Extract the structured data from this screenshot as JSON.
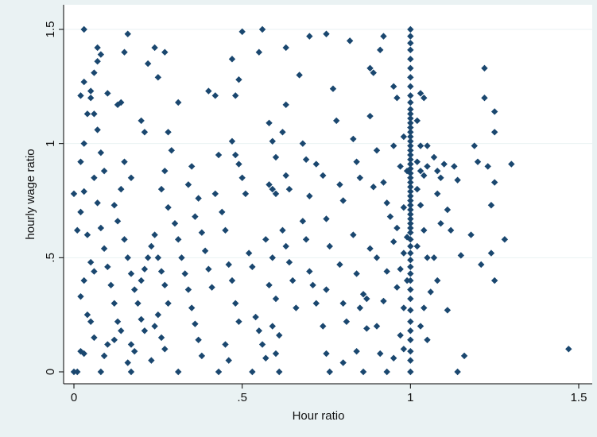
{
  "chart_data": {
    "type": "scatter",
    "xlabel": "Hour ratio",
    "ylabel": "hourly wage ratio",
    "xlim": [
      0,
      1.5
    ],
    "ylim": [
      0,
      1.5
    ],
    "x_ticks": [
      {
        "value": 0,
        "label": "0"
      },
      {
        "value": 0.5,
        "label": ".5"
      },
      {
        "value": 1,
        "label": "1"
      },
      {
        "value": 1.5,
        "label": "1.5"
      }
    ],
    "y_ticks": [
      {
        "value": 0,
        "label": "0"
      },
      {
        "value": 0.5,
        "label": ".5"
      },
      {
        "value": 1,
        "label": "1"
      },
      {
        "value": 1.5,
        "label": "1.5"
      }
    ],
    "grid": "horizontal",
    "legend": "none",
    "marker": "diamond",
    "colors": {
      "marker": "#1a476f",
      "plot_background": "#ffffff",
      "outer_background": "#eaf2f3",
      "grid": "#eaf2f3"
    },
    "points": [
      [
        0.0,
        0.0
      ],
      [
        0.01,
        0.0
      ],
      [
        0.02,
        0.09
      ],
      [
        0.03,
        0.08
      ],
      [
        0.02,
        0.33
      ],
      [
        0.03,
        0.4
      ],
      [
        0.04,
        0.25
      ],
      [
        0.05,
        0.22
      ],
      [
        0.06,
        0.15
      ],
      [
        0.01,
        0.62
      ],
      [
        0.02,
        0.7
      ],
      [
        0.03,
        0.79
      ],
      [
        0.0,
        0.78
      ],
      [
        0.04,
        0.6
      ],
      [
        0.05,
        0.48
      ],
      [
        0.06,
        0.44
      ],
      [
        0.02,
        0.92
      ],
      [
        0.03,
        1.0
      ],
      [
        0.04,
        1.13
      ],
      [
        0.02,
        1.21
      ],
      [
        0.03,
        1.27
      ],
      [
        0.05,
        1.2
      ],
      [
        0.06,
        1.13
      ],
      [
        0.07,
        1.06
      ],
      [
        0.08,
        0.96
      ],
      [
        0.09,
        0.88
      ],
      [
        0.06,
        0.85
      ],
      [
        0.07,
        0.74
      ],
      [
        0.08,
        0.63
      ],
      [
        0.09,
        0.54
      ],
      [
        0.1,
        0.46
      ],
      [
        0.11,
        0.38
      ],
      [
        0.12,
        0.3
      ],
      [
        0.13,
        0.22
      ],
      [
        0.14,
        0.18
      ],
      [
        0.1,
        0.12
      ],
      [
        0.12,
        0.14
      ],
      [
        0.09,
        0.07
      ],
      [
        0.08,
        0.0
      ],
      [
        0.03,
        1.5
      ],
      [
        0.07,
        1.42
      ],
      [
        0.08,
        1.39
      ],
      [
        0.07,
        1.36
      ],
      [
        0.06,
        1.31
      ],
      [
        0.05,
        1.23
      ],
      [
        0.1,
        1.22
      ],
      [
        0.13,
        1.17
      ],
      [
        0.14,
        1.18
      ],
      [
        0.15,
        1.4
      ],
      [
        0.16,
        1.48
      ],
      [
        0.15,
        0.92
      ],
      [
        0.17,
        0.85
      ],
      [
        0.14,
        0.8
      ],
      [
        0.12,
        0.73
      ],
      [
        0.13,
        0.66
      ],
      [
        0.15,
        0.58
      ],
      [
        0.16,
        0.5
      ],
      [
        0.17,
        0.43
      ],
      [
        0.18,
        0.36
      ],
      [
        0.19,
        0.3
      ],
      [
        0.2,
        0.23
      ],
      [
        0.21,
        0.18
      ],
      [
        0.17,
        0.12
      ],
      [
        0.18,
        0.09
      ],
      [
        0.16,
        0.04
      ],
      [
        0.17,
        0.0
      ],
      [
        0.2,
        0.4
      ],
      [
        0.21,
        0.45
      ],
      [
        0.22,
        0.5
      ],
      [
        0.23,
        0.55
      ],
      [
        0.24,
        0.6
      ],
      [
        0.25,
        0.5
      ],
      [
        0.26,
        0.44
      ],
      [
        0.27,
        0.38
      ],
      [
        0.28,
        0.3
      ],
      [
        0.25,
        0.25
      ],
      [
        0.24,
        0.2
      ],
      [
        0.26,
        0.15
      ],
      [
        0.27,
        0.1
      ],
      [
        0.23,
        0.05
      ],
      [
        0.2,
        1.1
      ],
      [
        0.21,
        1.05
      ],
      [
        0.22,
        1.35
      ],
      [
        0.24,
        1.42
      ],
      [
        0.27,
        1.4
      ],
      [
        0.25,
        1.29
      ],
      [
        0.28,
        1.05
      ],
      [
        0.29,
        0.97
      ],
      [
        0.27,
        0.88
      ],
      [
        0.26,
        0.8
      ],
      [
        0.28,
        0.72
      ],
      [
        0.3,
        0.65
      ],
      [
        0.31,
        0.58
      ],
      [
        0.32,
        0.5
      ],
      [
        0.33,
        0.43
      ],
      [
        0.34,
        0.36
      ],
      [
        0.35,
        0.28
      ],
      [
        0.36,
        0.21
      ],
      [
        0.37,
        0.14
      ],
      [
        0.38,
        0.07
      ],
      [
        0.31,
        0.0
      ],
      [
        0.31,
        1.18
      ],
      [
        0.35,
        0.9
      ],
      [
        0.34,
        0.82
      ],
      [
        0.37,
        0.76
      ],
      [
        0.36,
        0.68
      ],
      [
        0.38,
        0.61
      ],
      [
        0.39,
        0.53
      ],
      [
        0.4,
        0.45
      ],
      [
        0.41,
        0.37
      ],
      [
        0.42,
        1.21
      ],
      [
        0.4,
        1.23
      ],
      [
        0.43,
        0.95
      ],
      [
        0.42,
        0.78
      ],
      [
        0.44,
        0.7
      ],
      [
        0.45,
        0.62
      ],
      [
        0.46,
        0.47
      ],
      [
        0.47,
        0.4
      ],
      [
        0.48,
        0.3
      ],
      [
        0.49,
        0.22
      ],
      [
        0.45,
        0.12
      ],
      [
        0.46,
        0.05
      ],
      [
        0.43,
        0.0
      ],
      [
        0.47,
        1.37
      ],
      [
        0.48,
        1.21
      ],
      [
        0.49,
        1.28
      ],
      [
        0.5,
        1.49
      ],
      [
        0.47,
        1.01
      ],
      [
        0.48,
        0.95
      ],
      [
        0.49,
        0.91
      ],
      [
        0.5,
        0.85
      ],
      [
        0.51,
        0.78
      ],
      [
        0.52,
        0.52
      ],
      [
        0.53,
        0.46
      ],
      [
        0.54,
        0.24
      ],
      [
        0.55,
        0.18
      ],
      [
        0.56,
        0.12
      ],
      [
        0.57,
        0.06
      ],
      [
        0.53,
        0.0
      ],
      [
        0.55,
        1.4
      ],
      [
        0.56,
        1.5
      ],
      [
        0.58,
        1.09
      ],
      [
        0.59,
        1.01
      ],
      [
        0.6,
        0.94
      ],
      [
        0.58,
        0.82
      ],
      [
        0.59,
        0.8
      ],
      [
        0.6,
        0.78
      ],
      [
        0.57,
        0.58
      ],
      [
        0.59,
        0.5
      ],
      [
        0.58,
        0.38
      ],
      [
        0.6,
        0.32
      ],
      [
        0.59,
        0.2
      ],
      [
        0.61,
        0.16
      ],
      [
        0.6,
        0.08
      ],
      [
        0.61,
        0.0
      ],
      [
        0.63,
        1.17
      ],
      [
        0.62,
        1.05
      ],
      [
        0.63,
        0.86
      ],
      [
        0.64,
        0.8
      ],
      [
        0.62,
        0.62
      ],
      [
        0.63,
        0.55
      ],
      [
        0.64,
        0.48
      ],
      [
        0.65,
        0.4
      ],
      [
        0.66,
        0.28
      ],
      [
        0.63,
        1.42
      ],
      [
        0.67,
        1.3
      ],
      [
        0.68,
        1.0
      ],
      [
        0.69,
        0.93
      ],
      [
        0.7,
        0.77
      ],
      [
        0.68,
        0.66
      ],
      [
        0.69,
        0.58
      ],
      [
        0.7,
        0.44
      ],
      [
        0.71,
        0.38
      ],
      [
        0.72,
        0.3
      ],
      [
        0.7,
        1.47
      ],
      [
        0.72,
        0.91
      ],
      [
        0.74,
        0.86
      ],
      [
        0.75,
        0.67
      ],
      [
        0.76,
        0.55
      ],
      [
        0.75,
        0.36
      ],
      [
        0.74,
        0.2
      ],
      [
        0.75,
        0.08
      ],
      [
        0.76,
        0.0
      ],
      [
        0.75,
        1.48
      ],
      [
        0.77,
        1.24
      ],
      [
        0.78,
        1.1
      ],
      [
        0.79,
        0.82
      ],
      [
        0.8,
        0.75
      ],
      [
        0.79,
        0.47
      ],
      [
        0.8,
        0.3
      ],
      [
        0.81,
        0.22
      ],
      [
        0.8,
        0.04
      ],
      [
        0.82,
        1.45
      ],
      [
        0.83,
        1.02
      ],
      [
        0.84,
        0.92
      ],
      [
        0.85,
        0.85
      ],
      [
        0.83,
        0.6
      ],
      [
        0.84,
        0.43
      ],
      [
        0.86,
        0.34
      ],
      [
        0.85,
        0.28
      ],
      [
        0.87,
        0.19
      ],
      [
        0.84,
        0.09
      ],
      [
        0.86,
        0.0
      ],
      [
        0.88,
        1.33
      ],
      [
        0.89,
        1.31
      ],
      [
        0.88,
        1.12
      ],
      [
        0.9,
        0.97
      ],
      [
        0.89,
        0.81
      ],
      [
        0.88,
        0.54
      ],
      [
        0.9,
        0.5
      ],
      [
        0.87,
        0.32
      ],
      [
        0.9,
        0.2
      ],
      [
        0.91,
        0.08
      ],
      [
        0.92,
        1.47
      ],
      [
        0.91,
        1.41
      ],
      [
        0.92,
        0.83
      ],
      [
        0.93,
        0.74
      ],
      [
        0.94,
        0.68
      ],
      [
        0.93,
        0.44
      ],
      [
        0.92,
        0.31
      ],
      [
        0.93,
        0.0
      ],
      [
        0.95,
        1.25
      ],
      [
        0.96,
        1.2
      ],
      [
        0.95,
        0.99
      ],
      [
        0.97,
        0.9
      ],
      [
        0.96,
        0.63
      ],
      [
        0.95,
        0.57
      ],
      [
        0.97,
        0.45
      ],
      [
        0.96,
        0.37
      ],
      [
        0.98,
        0.28
      ],
      [
        0.97,
        0.16
      ],
      [
        0.95,
        0.06
      ],
      [
        0.98,
        1.03
      ],
      [
        0.99,
        0.88
      ],
      [
        0.98,
        0.72
      ],
      [
        0.99,
        0.59
      ],
      [
        0.98,
        0.52
      ],
      [
        0.99,
        0.4
      ],
      [
        0.98,
        0.1
      ],
      [
        1.0,
        0.0
      ],
      [
        1.0,
        0.05
      ],
      [
        1.0,
        0.09
      ],
      [
        1.0,
        0.14
      ],
      [
        1.0,
        0.18
      ],
      [
        1.0,
        0.22
      ],
      [
        1.0,
        0.27
      ],
      [
        1.0,
        0.32
      ],
      [
        1.0,
        0.36
      ],
      [
        1.0,
        0.4
      ],
      [
        1.0,
        0.43
      ],
      [
        1.0,
        0.46
      ],
      [
        1.0,
        0.49
      ],
      [
        1.0,
        0.52
      ],
      [
        1.0,
        0.55
      ],
      [
        1.0,
        0.58
      ],
      [
        1.0,
        0.61
      ],
      [
        1.0,
        0.63
      ],
      [
        1.0,
        0.65
      ],
      [
        1.0,
        0.67
      ],
      [
        1.0,
        0.69
      ],
      [
        1.0,
        0.71
      ],
      [
        1.0,
        0.73
      ],
      [
        1.0,
        0.75
      ],
      [
        1.0,
        0.77
      ],
      [
        1.0,
        0.79
      ],
      [
        1.0,
        0.81
      ],
      [
        1.0,
        0.83
      ],
      [
        1.0,
        0.85
      ],
      [
        1.0,
        0.87
      ],
      [
        1.0,
        0.89
      ],
      [
        1.0,
        0.91
      ],
      [
        1.0,
        0.93
      ],
      [
        1.0,
        0.95
      ],
      [
        1.0,
        0.97
      ],
      [
        1.0,
        0.99
      ],
      [
        1.0,
        1.01
      ],
      [
        1.0,
        1.03
      ],
      [
        1.0,
        1.05
      ],
      [
        1.0,
        1.07
      ],
      [
        1.0,
        1.09
      ],
      [
        1.0,
        1.11
      ],
      [
        1.0,
        1.13
      ],
      [
        1.0,
        1.15
      ],
      [
        1.0,
        1.18
      ],
      [
        1.0,
        1.21
      ],
      [
        1.0,
        1.25
      ],
      [
        1.0,
        1.29
      ],
      [
        1.0,
        1.33
      ],
      [
        1.0,
        1.37
      ],
      [
        1.0,
        1.41
      ],
      [
        1.0,
        1.44
      ],
      [
        1.0,
        1.47
      ],
      [
        1.0,
        1.5
      ],
      [
        1.03,
        1.22
      ],
      [
        1.04,
        1.2
      ],
      [
        1.02,
        1.1
      ],
      [
        1.03,
        0.99
      ],
      [
        1.05,
        0.99
      ],
      [
        1.02,
        0.92
      ],
      [
        1.03,
        0.88
      ],
      [
        1.04,
        0.86
      ],
      [
        1.05,
        0.9
      ],
      [
        1.02,
        0.8
      ],
      [
        1.03,
        0.73
      ],
      [
        1.04,
        0.62
      ],
      [
        1.02,
        0.55
      ],
      [
        1.05,
        0.5
      ],
      [
        1.03,
        0.2
      ],
      [
        1.05,
        0.14
      ],
      [
        1.04,
        0.28
      ],
      [
        1.06,
        0.35
      ],
      [
        1.07,
        0.94
      ],
      [
        1.08,
        0.88
      ],
      [
        1.09,
        0.85
      ],
      [
        1.1,
        0.91
      ],
      [
        1.08,
        0.78
      ],
      [
        1.09,
        0.65
      ],
      [
        1.07,
        0.5
      ],
      [
        1.08,
        0.4
      ],
      [
        1.11,
        0.71
      ],
      [
        1.12,
        0.62
      ],
      [
        1.11,
        0.27
      ],
      [
        1.13,
        0.9
      ],
      [
        1.14,
        0.84
      ],
      [
        1.15,
        0.51
      ],
      [
        1.14,
        0.0
      ],
      [
        1.16,
        0.07
      ],
      [
        1.18,
        0.6
      ],
      [
        1.19,
        0.99
      ],
      [
        1.2,
        0.92
      ],
      [
        1.21,
        0.47
      ],
      [
        1.22,
        1.33
      ],
      [
        1.22,
        1.2
      ],
      [
        1.23,
        0.9
      ],
      [
        1.24,
        0.52
      ],
      [
        1.25,
        1.14
      ],
      [
        1.25,
        1.05
      ],
      [
        1.25,
        0.83
      ],
      [
        1.24,
        0.73
      ],
      [
        1.25,
        0.4
      ],
      [
        1.28,
        0.58
      ],
      [
        1.3,
        0.91
      ],
      [
        1.47,
        0.1
      ]
    ]
  }
}
